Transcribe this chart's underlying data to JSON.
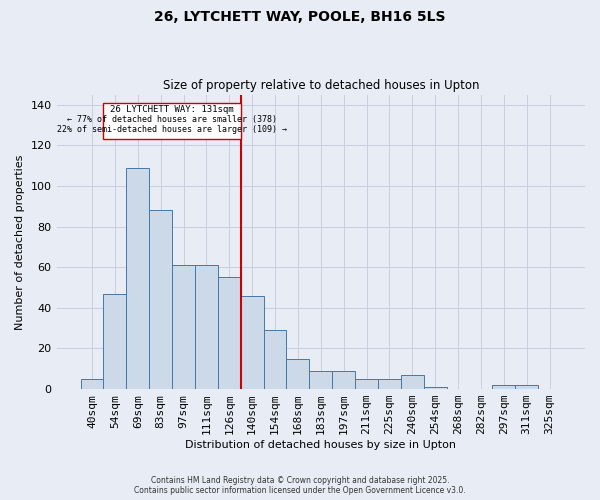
{
  "title1": "26, LYTCHETT WAY, POOLE, BH16 5LS",
  "title2": "Size of property relative to detached houses in Upton",
  "xlabel": "Distribution of detached houses by size in Upton",
  "ylabel": "Number of detached properties",
  "bar_labels": [
    "40sqm",
    "54sqm",
    "69sqm",
    "83sqm",
    "97sqm",
    "111sqm",
    "126sqm",
    "140sqm",
    "154sqm",
    "168sqm",
    "183sqm",
    "197sqm",
    "211sqm",
    "225sqm",
    "240sqm",
    "254sqm",
    "268sqm",
    "282sqm",
    "297sqm",
    "311sqm",
    "325sqm"
  ],
  "bar_values": [
    5,
    47,
    109,
    88,
    61,
    61,
    55,
    46,
    29,
    15,
    9,
    9,
    5,
    5,
    7,
    1,
    0,
    0,
    2,
    2,
    0
  ],
  "bar_color": "#ccd9e8",
  "bar_edge_color": "#4477aa",
  "grid_color": "#c8cfe0",
  "background_color": "#e8edf5",
  "vline_x_index": 7,
  "vline_color": "#cc0000",
  "ann_line1": "26 LYTCHETT WAY: 131sqm",
  "ann_line2": "← 77% of detached houses are smaller (378)",
  "ann_line3": "22% of semi-detached houses are larger (109) →",
  "annotation_box_edge": "#cc0000",
  "ylim": [
    0,
    145
  ],
  "yticks": [
    0,
    20,
    40,
    60,
    80,
    100,
    120,
    140
  ],
  "footnote1": "Contains HM Land Registry data © Crown copyright and database right 2025.",
  "footnote2": "Contains public sector information licensed under the Open Government Licence v3.0."
}
